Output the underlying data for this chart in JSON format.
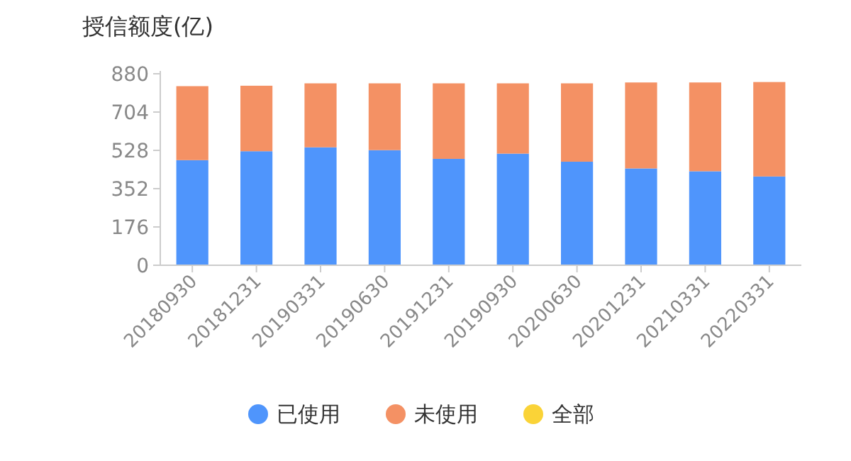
{
  "chart_data": {
    "type": "bar",
    "title": "授信额度(亿)",
    "stacked": true,
    "categories": [
      "20180930",
      "20181231",
      "20190331",
      "20190630",
      "20191231",
      "20190930",
      "20200630",
      "20201231",
      "20210331",
      "20220331"
    ],
    "series": [
      {
        "name": "已使用",
        "color": "#4f95fc",
        "values": [
          483,
          524,
          542,
          529,
          489,
          513,
          476,
          445,
          432,
          408
        ]
      },
      {
        "name": "未使用",
        "color": "#f49164",
        "values": [
          340,
          301,
          294,
          307,
          347,
          323,
          360,
          395,
          408,
          434
        ]
      },
      {
        "name": "全部",
        "color": "#fad337",
        "values": [
          null,
          null,
          null,
          null,
          null,
          null,
          null,
          null,
          null,
          null
        ]
      }
    ],
    "ylim": [
      0,
      880
    ],
    "yticks": [
      0,
      176,
      352,
      528,
      704,
      880
    ],
    "grid": false,
    "legend": "bottom"
  }
}
